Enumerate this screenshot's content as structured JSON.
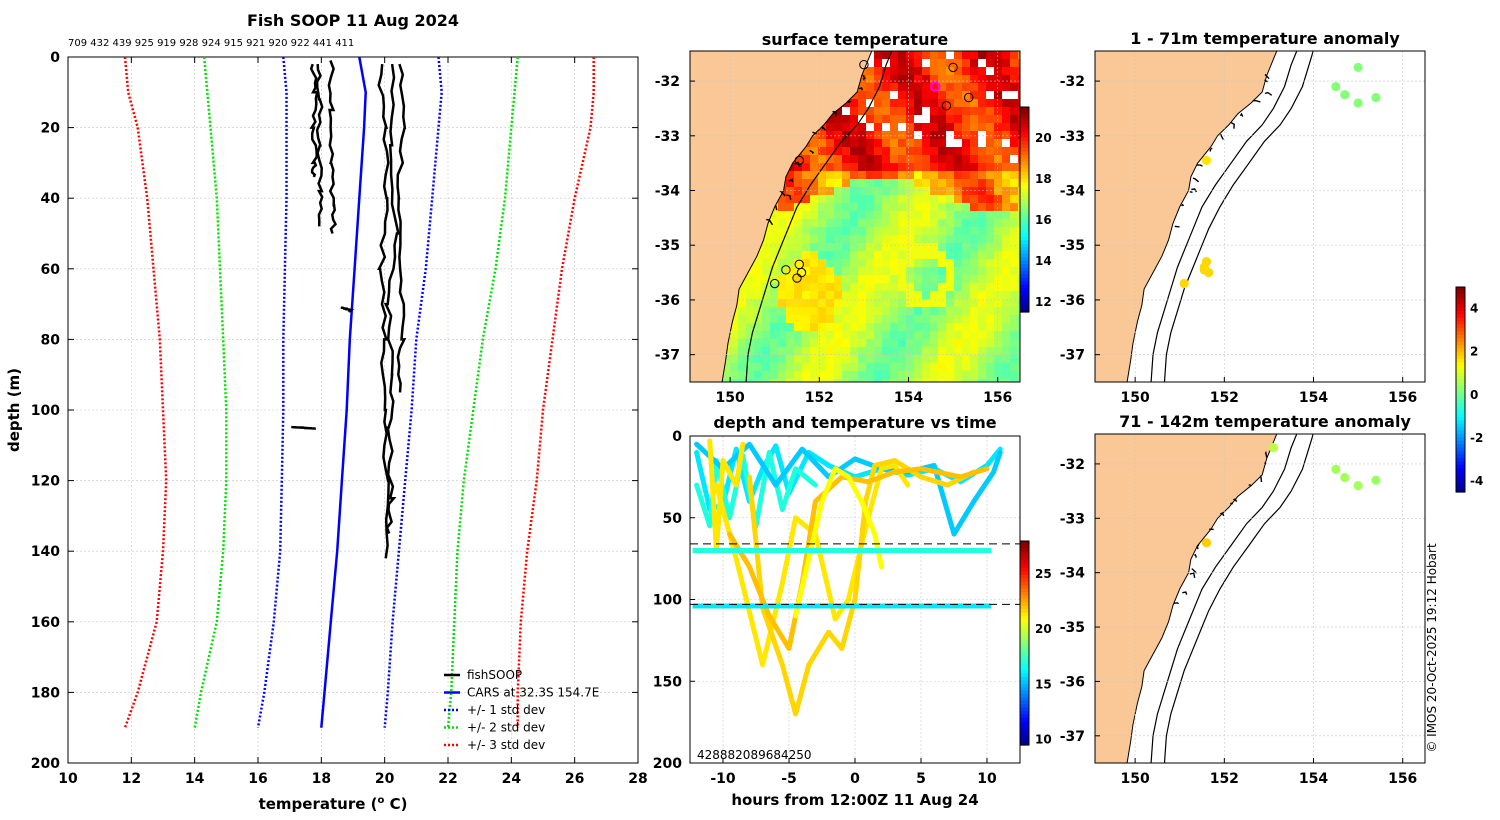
{
  "chart_data": [
    {
      "type": "line",
      "title": "Fish SOOP 11 Aug 2024",
      "xlabel": "temperature (",
      "xlabel_sup": "o",
      "xlabel_end": " C)",
      "ylabel": "depth (m)",
      "xlim": [
        10,
        28
      ],
      "ylim": [
        0,
        200
      ],
      "xticks": [
        10,
        12,
        14,
        16,
        18,
        20,
        22,
        24,
        26,
        28
      ],
      "yticks": [
        0,
        20,
        40,
        60,
        80,
        100,
        120,
        140,
        160,
        180,
        200
      ],
      "top_labels": "709 432 439 925 919 928 924 915 921 920 922 441 411",
      "legend": [
        "fishSOOP",
        "CARS at 32.3S 154.7E",
        "+/- 1 std dev",
        "+/- 2 std dev",
        "+/- 3 std dev"
      ],
      "cars_depth": [
        0,
        10,
        20,
        40,
        60,
        80,
        100,
        120,
        140,
        160,
        180,
        190
      ],
      "cars_mean": [
        19.2,
        19.4,
        19.35,
        19.2,
        19.05,
        18.9,
        18.8,
        18.65,
        18.5,
        18.3,
        18.1,
        18.0
      ],
      "std1_lo": [
        16.8,
        16.9,
        16.9,
        16.9,
        16.85,
        16.8,
        16.8,
        16.75,
        16.7,
        16.5,
        16.2,
        16.0
      ],
      "std1_hi": [
        21.7,
        21.8,
        21.7,
        21.5,
        21.3,
        21.0,
        20.85,
        20.65,
        20.45,
        20.25,
        20.1,
        20.0
      ],
      "std2_lo": [
        14.3,
        14.4,
        14.5,
        14.7,
        14.8,
        14.9,
        15.0,
        15.0,
        14.9,
        14.7,
        14.2,
        14.0
      ],
      "std2_hi": [
        24.2,
        24.1,
        24.0,
        23.8,
        23.5,
        23.1,
        22.8,
        22.5,
        22.3,
        22.2,
        22.1,
        22.0
      ],
      "std3_lo": [
        11.8,
        11.9,
        12.2,
        12.5,
        12.7,
        12.9,
        13.0,
        13.1,
        13.0,
        12.8,
        12.2,
        11.8
      ],
      "std3_hi": [
        26.6,
        26.6,
        26.5,
        26.0,
        25.6,
        25.3,
        25.0,
        24.8,
        24.5,
        24.3,
        24.2,
        24.2
      ],
      "fish_profiles": [
        {
          "t": [
            17.7,
            17.8,
            17.75,
            17.8,
            17.7
          ],
          "d": [
            2,
            10,
            20,
            30,
            34
          ]
        },
        {
          "t": [
            17.9,
            17.95,
            17.9,
            18.0,
            17.95
          ],
          "d": [
            2,
            12,
            25,
            38,
            48
          ]
        },
        {
          "t": [
            18.3,
            18.35,
            18.3,
            18.4,
            18.35
          ],
          "d": [
            1,
            15,
            30,
            42,
            50
          ]
        },
        {
          "t": [
            19.85,
            20.0,
            20.05,
            19.9,
            20.0,
            19.95,
            20.1,
            20.0
          ],
          "d": [
            2,
            20,
            40,
            60,
            80,
            100,
            120,
            142
          ]
        },
        {
          "t": [
            20.3,
            20.2,
            20.35,
            20.1,
            20.3,
            20.15,
            20.2,
            20.1
          ],
          "d": [
            2,
            25,
            50,
            70,
            90,
            105,
            125,
            135
          ]
        },
        {
          "t": [
            20.5,
            20.6,
            20.45,
            20.5,
            20.55,
            20.4
          ],
          "d": [
            2,
            20,
            40,
            60,
            80,
            95
          ]
        },
        {
          "t": [
            18.7,
            18.8,
            18.9
          ],
          "d": [
            71,
            71.5,
            72
          ]
        },
        {
          "t": [
            17.0,
            17.4,
            17.8
          ],
          "d": [
            104.8,
            105,
            105.3
          ]
        }
      ]
    },
    {
      "type": "heatmap",
      "title": "surface temperature",
      "xticks": [
        150,
        152,
        154,
        156
      ],
      "yticks": [
        -32,
        -33,
        -34,
        -35,
        -36,
        -37
      ],
      "colorbar_ticks": [
        20,
        18,
        16,
        14,
        12
      ],
      "colorbar_range": [
        11.5,
        21.5
      ],
      "stations_lon": [
        153.0,
        151.55,
        154.6,
        155.0,
        154.85,
        155.35,
        151.0,
        151.25,
        151.5,
        151.55,
        151.6
      ],
      "stations_lat": [
        -31.7,
        -33.45,
        -32.1,
        -31.75,
        -32.45,
        -32.3,
        -35.7,
        -35.45,
        -35.6,
        -35.35,
        -35.5
      ]
    },
    {
      "type": "scatter",
      "title": "depth and temperature vs time",
      "xlabel": "hours from 12:00Z 11 Aug 24",
      "xticks": [
        -10,
        -5,
        0,
        5,
        10
      ],
      "yticks": [
        0,
        50,
        100,
        150,
        200
      ],
      "xlim": [
        -12.5,
        12.5
      ],
      "ylim": [
        0,
        200
      ],
      "colorbar_ticks": [
        25,
        20,
        15,
        10
      ],
      "colorbar_range": [
        9.5,
        28
      ],
      "ref_depths": [
        66,
        103
      ],
      "bottom_labels": "428882089684250"
    },
    {
      "type": "scatter",
      "title": "1 - 71m temperature anomaly",
      "xticks": [
        150,
        152,
        154,
        156
      ],
      "yticks": [
        -32,
        -33,
        -34,
        -35,
        -36,
        -37
      ],
      "lon": [
        155.0,
        154.5,
        154.7,
        155.0,
        155.4,
        151.6,
        151.1,
        151.55,
        151.65,
        151.55,
        151.6
      ],
      "lat": [
        -31.75,
        -32.1,
        -32.25,
        -32.4,
        -32.3,
        -33.45,
        -35.7,
        -35.45,
        -35.5,
        -35.4,
        -35.3
      ],
      "anomaly": [
        0.3,
        0.3,
        0.3,
        0.3,
        0.3,
        1.7,
        1.8,
        1.8,
        1.8,
        1.8,
        1.8
      ]
    },
    {
      "type": "scatter",
      "title": "71 - 142m temperature anomaly",
      "xticks": [
        150,
        152,
        154,
        156
      ],
      "yticks": [
        -32,
        -33,
        -34,
        -35,
        -36,
        -37
      ],
      "lon": [
        153.1,
        154.5,
        154.7,
        155.0,
        155.4,
        151.6
      ],
      "lat": [
        -31.7,
        -32.1,
        -32.25,
        -32.4,
        -32.3,
        -33.45
      ],
      "anomaly": [
        0.8,
        0.6,
        0.6,
        0.6,
        0.5,
        1.9
      ]
    }
  ],
  "anomaly_colorbar_ticks": [
    4,
    2,
    0,
    -2,
    -4
  ],
  "anomaly_colorbar_range": [
    -4.5,
    5
  ],
  "credit": "© IMOS 20-Oct-2025 19:12 Hobart",
  "colors": {
    "land": "#f9c896",
    "cars": "#0000ff",
    "std1": "#0000ff",
    "std2": "#00e000",
    "std3": "#ff0000",
    "highlight": "#ff00ff"
  }
}
